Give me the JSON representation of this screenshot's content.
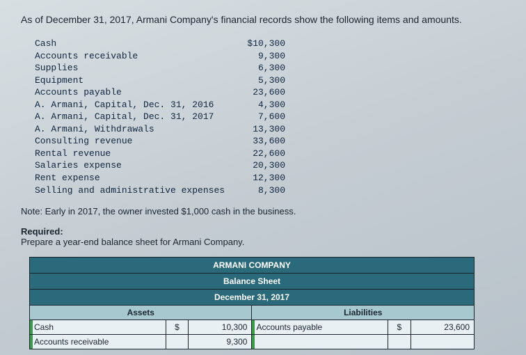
{
  "intro": "As of December 31, 2017, Armani Company's financial records show the following items and amounts.",
  "records": [
    {
      "label": "Cash",
      "value": "$10,300"
    },
    {
      "label": "Accounts receivable",
      "value": "9,300"
    },
    {
      "label": "Supplies",
      "value": "6,300"
    },
    {
      "label": "Equipment",
      "value": "5,300"
    },
    {
      "label": "Accounts payable",
      "value": "23,600"
    },
    {
      "label": "A. Armani, Capital, Dec. 31, 2016",
      "value": "4,300"
    },
    {
      "label": "A. Armani, Capital, Dec. 31, 2017",
      "value": "7,600"
    },
    {
      "label": "A. Armani, Withdrawals",
      "value": "13,300"
    },
    {
      "label": "Consulting revenue",
      "value": "33,600"
    },
    {
      "label": "Rental revenue",
      "value": "22,600"
    },
    {
      "label": "Salaries expense",
      "value": "20,300"
    },
    {
      "label": "Rent expense",
      "value": "12,300"
    },
    {
      "label": "Selling and administrative expenses",
      "value": "8,300"
    }
  ],
  "note": "Note: Early in 2017, the owner invested $1,000 cash in the business.",
  "required_label": "Required:",
  "required_text": "Prepare a year-end balance sheet for Armani Company.",
  "balance_sheet": {
    "title": "ARMANI COMPANY",
    "subtitle": "Balance Sheet",
    "date": "December 31, 2017",
    "assets_header": "Assets",
    "liabilities_header": "Liabilities",
    "rows": [
      {
        "asset_label": "Cash",
        "asset_sym": "$",
        "asset_val": "10,300",
        "liab_label": "Accounts payable",
        "liab_sym": "$",
        "liab_val": "23,600"
      },
      {
        "asset_label": "Accounts receivable",
        "asset_sym": "",
        "asset_val": "9,300",
        "liab_label": "",
        "liab_sym": "",
        "liab_val": ""
      }
    ],
    "colors": {
      "header_bg": "#2a6a7a",
      "section_bg": "#a8c8d0",
      "data_bg": "#e8f0f3",
      "border": "#1a2530",
      "green_mark": "#3a9a4a"
    }
  },
  "page_bg_gradient": [
    "#d8dfe3",
    "#c5cdd3",
    "#b8c2ca"
  ]
}
